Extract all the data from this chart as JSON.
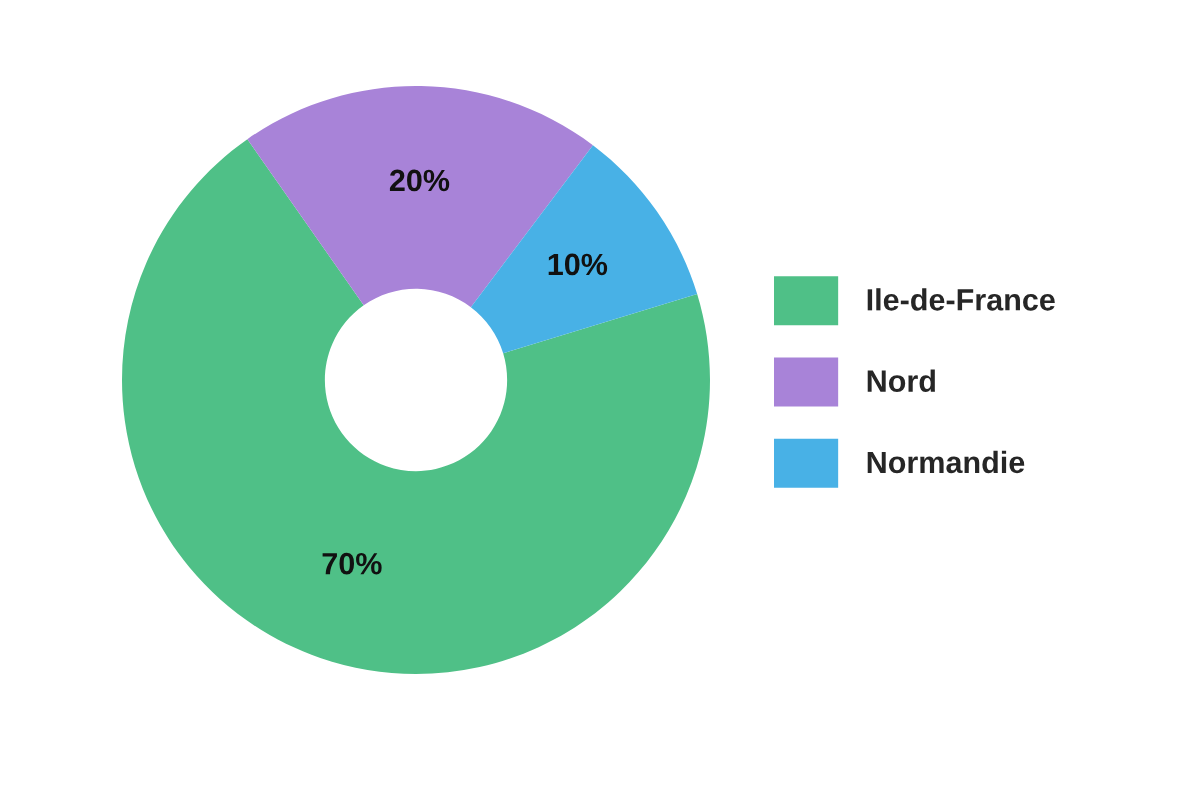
{
  "chart_data": {
    "type": "donut",
    "categories": [
      "Ile-de-France",
      "Nord",
      "Normandie"
    ],
    "values": [
      70,
      20,
      10
    ],
    "colors": [
      "#4fc087",
      "#a883d8",
      "#48b1e6"
    ],
    "value_labels": [
      "70%",
      "20%",
      "10%"
    ],
    "legend": "right"
  }
}
